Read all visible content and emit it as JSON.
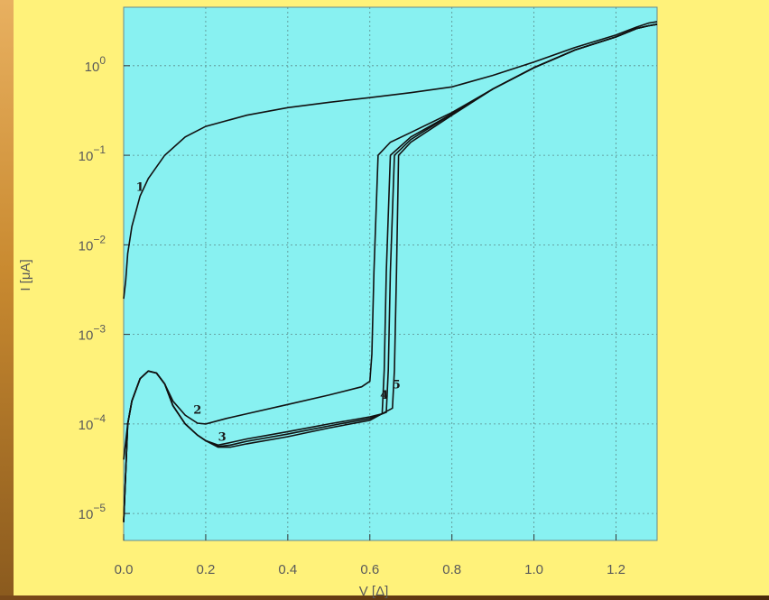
{
  "chart_data": {
    "type": "line",
    "title": "",
    "xlabel": "V [Δ]",
    "ylabel": "I [μA]",
    "xlim": [
      0,
      1.3
    ],
    "ylim": [
      5e-06,
      4.5
    ],
    "y_scale": "log",
    "grid": true,
    "background_color": "#88f1f1",
    "page_color": "#fff27a",
    "x_ticks": [
      "0.0",
      "0.2",
      "0.4",
      "0.6",
      "0.8",
      "1.0",
      "1.2"
    ],
    "y_ticks": [
      {
        "base": "10",
        "exp": "0",
        "value": 1
      },
      {
        "base": "10",
        "exp": "−1",
        "value": 0.1
      },
      {
        "base": "10",
        "exp": "−2",
        "value": 0.01
      },
      {
        "base": "10",
        "exp": "−3",
        "value": 0.001
      },
      {
        "base": "10",
        "exp": "−4",
        "value": 0.0001
      },
      {
        "base": "10",
        "exp": "−5",
        "value": 1e-05
      }
    ],
    "series": [
      {
        "label": "1",
        "label_at": [
          0.04,
          0.04
        ],
        "x": [
          0.0,
          0.005,
          0.01,
          0.02,
          0.04,
          0.06,
          0.1,
          0.15,
          0.2,
          0.3,
          0.4,
          0.5,
          0.6,
          0.7,
          0.8,
          0.9,
          1.0,
          1.1,
          1.2,
          1.25,
          1.28,
          1.3
        ],
        "y": [
          0.0025,
          0.004,
          0.008,
          0.016,
          0.035,
          0.055,
          0.1,
          0.16,
          0.21,
          0.28,
          0.34,
          0.39,
          0.44,
          0.5,
          0.58,
          0.78,
          1.1,
          1.6,
          2.2,
          2.7,
          3.0,
          3.1
        ]
      },
      {
        "label": "2",
        "label_at": [
          0.18,
          0.00013
        ],
        "x": [
          0.0,
          0.01,
          0.02,
          0.04,
          0.06,
          0.08,
          0.1,
          0.12,
          0.15,
          0.18,
          0.2,
          0.25,
          0.3,
          0.4,
          0.5,
          0.58,
          0.6,
          0.605,
          0.61,
          0.62,
          0.65,
          0.7,
          0.8,
          0.9,
          1.0,
          1.1,
          1.2,
          1.25,
          1.28,
          1.3
        ],
        "y": [
          4e-05,
          0.0001,
          0.00018,
          0.00032,
          0.00039,
          0.00037,
          0.00028,
          0.00018,
          0.000125,
          0.000102,
          0.0001,
          0.000115,
          0.00013,
          0.000165,
          0.00021,
          0.00026,
          0.0003,
          0.0006,
          0.005,
          0.1,
          0.14,
          0.18,
          0.3,
          0.55,
          0.95,
          1.5,
          2.1,
          2.6,
          2.8,
          2.9
        ]
      },
      {
        "label": "3",
        "label_at": [
          0.24,
          6.5e-05
        ],
        "x": [
          0.0,
          0.01,
          0.02,
          0.04,
          0.06,
          0.08,
          0.1,
          0.12,
          0.15,
          0.18,
          0.2,
          0.23,
          0.26,
          0.3,
          0.4,
          0.5,
          0.6,
          0.63,
          0.635,
          0.64,
          0.65,
          0.7,
          0.8,
          0.9,
          1.0,
          1.1,
          1.2,
          1.25,
          1.28,
          1.3
        ],
        "y": [
          8e-06,
          0.0001,
          0.00018,
          0.00032,
          0.00039,
          0.00037,
          0.00028,
          0.00016,
          0.0001,
          7.5e-05,
          6.5e-05,
          5.8e-05,
          6.2e-05,
          6.8e-05,
          8.2e-05,
          0.0001,
          0.00012,
          0.00013,
          0.0004,
          0.005,
          0.1,
          0.16,
          0.29,
          0.55,
          0.95,
          1.5,
          2.1,
          2.6,
          2.8,
          2.9
        ]
      },
      {
        "label": "4",
        "label_at": [
          0.635,
          0.00019
        ],
        "x": [
          0.0,
          0.01,
          0.02,
          0.04,
          0.06,
          0.08,
          0.1,
          0.12,
          0.15,
          0.18,
          0.2,
          0.23,
          0.26,
          0.3,
          0.4,
          0.5,
          0.6,
          0.64,
          0.645,
          0.65,
          0.66,
          0.7,
          0.8,
          0.9,
          1.0,
          1.1,
          1.2,
          1.25,
          1.28,
          1.3
        ],
        "y": [
          8e-06,
          0.0001,
          0.00018,
          0.00032,
          0.00039,
          0.00037,
          0.00028,
          0.00016,
          0.0001,
          7.5e-05,
          6.5e-05,
          5.6e-05,
          5.8e-05,
          6.4e-05,
          7.7e-05,
          9.5e-05,
          0.000115,
          0.000135,
          0.0004,
          0.005,
          0.1,
          0.15,
          0.29,
          0.55,
          0.95,
          1.5,
          2.1,
          2.6,
          2.8,
          2.9
        ]
      },
      {
        "label": "5",
        "label_at": [
          0.665,
          0.00025
        ],
        "x": [
          0.0,
          0.01,
          0.02,
          0.04,
          0.06,
          0.08,
          0.1,
          0.12,
          0.15,
          0.18,
          0.2,
          0.23,
          0.26,
          0.3,
          0.4,
          0.5,
          0.6,
          0.655,
          0.66,
          0.665,
          0.67,
          0.7,
          0.8,
          0.9,
          1.0,
          1.1,
          1.2,
          1.25,
          1.28,
          1.3
        ],
        "y": [
          8e-06,
          0.0001,
          0.00018,
          0.00032,
          0.00039,
          0.00037,
          0.00028,
          0.00016,
          0.0001,
          7.5e-05,
          6.5e-05,
          5.5e-05,
          5.5e-05,
          6e-05,
          7.2e-05,
          9e-05,
          0.00011,
          0.00015,
          0.0004,
          0.005,
          0.1,
          0.14,
          0.28,
          0.55,
          0.95,
          1.5,
          2.1,
          2.6,
          2.8,
          2.9
        ]
      }
    ]
  }
}
